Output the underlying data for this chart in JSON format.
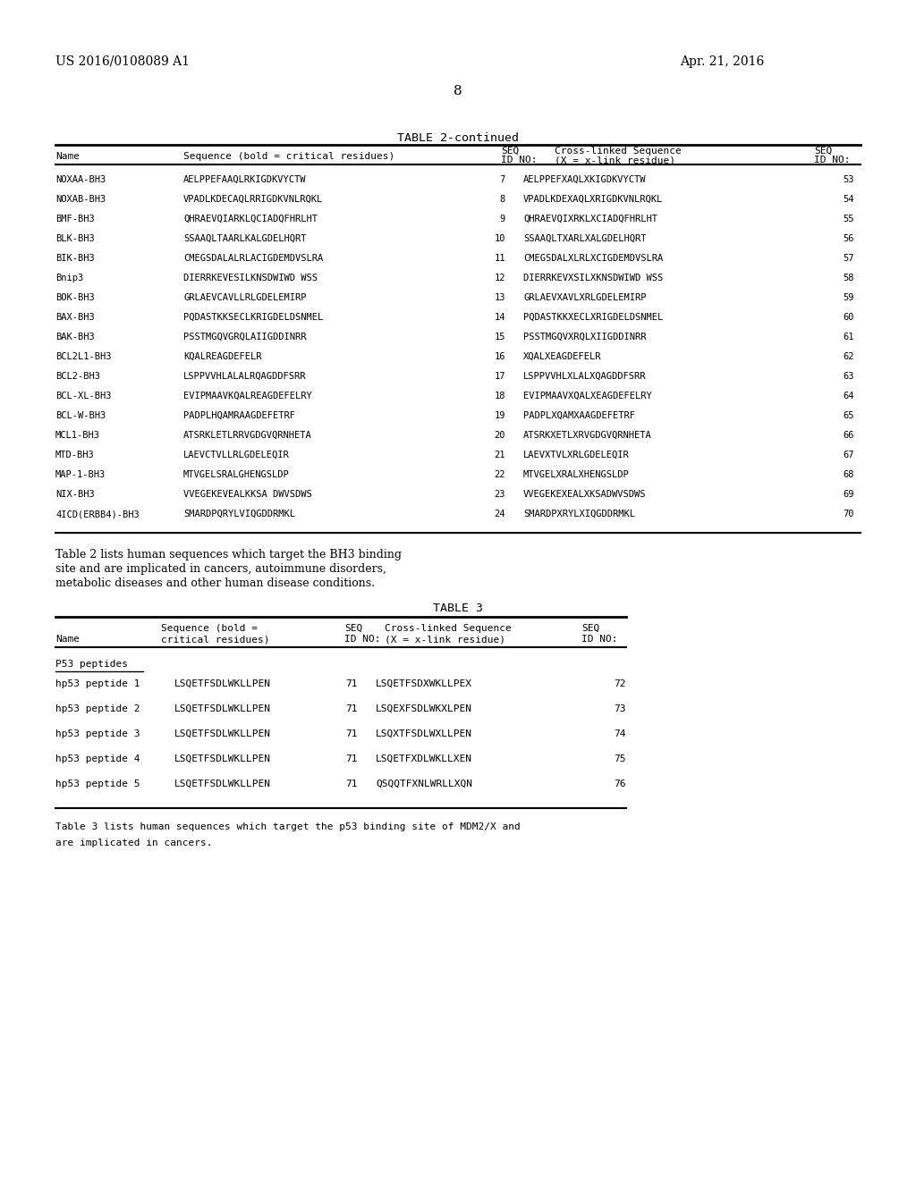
{
  "page_num": "8",
  "header_left": "US 2016/0108089 A1",
  "header_right": "Apr. 21, 2016",
  "table2_title": "TABLE 2-continued",
  "table2_col_headers": [
    [
      "Name",
      "Sequence (bold = critical residues)",
      "SEQ\nID NO:",
      "Cross-linked Sequence\n(X = x-link residue)",
      "SEQ\nID NO:"
    ]
  ],
  "table2_rows": [
    [
      "NOXAA-BH3",
      "AELPPEFAAQLRKIG{DKVYCTW}",
      "7",
      "AELPPEF{XAQLXKIG}DKVYCTW",
      "53"
    ],
    [
      "NOXAB-BH3",
      "VPADLKDECAQLRRIG{DKVNLRQKL}",
      "8",
      "VPADLKDE{XAQLXRIG}DKVNLRQKL",
      "54"
    ],
    [
      "BMF-BH3",
      "QHRAEVQIARKL{QCIAD}QFHRLHT",
      "9",
      "QHRAEVQI{XRKLX}CIADQFHRLHT",
      "55"
    ],
    [
      "BLK-BH3",
      "SSAAQLTAARLKAL{GDELHQRT}",
      "10",
      "SSAAQLT{XARLX}ALGDELHQRT",
      "56"
    ],
    [
      "BIK-BH3",
      "CMEGSDALALRLACIG{DEMDVSLRA}",
      "11",
      "CMEGSDALX{LRLX}CIGDEMDVSLRA",
      "57"
    ],
    [
      "Bnip3",
      "DIERRKEVESILKKNS{DWIWD}WSS",
      "12",
      "DIERRKEVX{SILX}KNSDWIWD WSS",
      "58"
    ],
    [
      "BOK-BH3",
      "GRLAEVCAVLLRLG{DELEMIRP}",
      "13",
      "GRLAEVX{AVLX}RLGDELEMIRP",
      "59"
    ],
    [
      "BAX-BH3",
      "PQDASTKKSECLKRIG{DELDSNMEL}",
      "14",
      "PQDASTKKX{ECLX}RIGDELDSNMEL",
      "60"
    ],
    [
      "BAK-BH3",
      "PSSTMGQVGRQLAIIG{DDINRR}",
      "15",
      "PSSTMGQVX{RQLX}IIGDDINRR",
      "61"
    ],
    [
      "BCL2L1-BH3",
      "KQALREAG{DEFELR}",
      "16",
      "X{QALX}EAGDEFELR",
      "62"
    ],
    [
      "BCL2-BH3",
      "LSPPVVHLALALRQAG{DDFSRR}",
      "17",
      "LSPPVVHLX{LALX}QAGDDFSRR",
      "63"
    ],
    [
      "BCL-XL-BH3",
      "EVIPMAAVKQALREAG{DEFELRY}",
      "18",
      "EVIPMAAVX{QALX}EAGDEFELRY",
      "64"
    ],
    [
      "BCL-W-BH3",
      "PADPLHQAMRAAG{DEFETRF}",
      "19",
      "PADPLX{QAMX}AAGDEFETRF",
      "65"
    ],
    [
      "MCL1-BH3",
      "ATSRKLETLRRVGDGVQRNHETA",
      "20",
      "ATSRKX{ETLX}RVGDGVQRNHETA",
      "66"
    ],
    [
      "MTD-BH3",
      "LAEVCTVLLRLG{DELEQIR}",
      "21",
      "LAEVX{TVLX}RLGDELEQIR",
      "67"
    ],
    [
      "MAP-1-BH3",
      "MTVGELSRALGHENGSLDP",
      "22",
      "MTVGELX{RALX}HENGSLDP",
      "68"
    ],
    [
      "NIX-BH3",
      "VVEGEKEVEALKKSA{DWVSDWS}",
      "23",
      "VVEGEKEX{EALX}KSADWVSDWS",
      "69"
    ],
    [
      "4ICD(ERBB4)-BH3",
      "SMARDPQRYLVIQ{GDDRMKL}",
      "24",
      "SMARDPX{RYLX}IQGDDRMKL",
      "70"
    ]
  ],
  "table2_note": "Table 2 lists human sequences which target the BH3 binding\nsite and are implicated in cancers, autoimmune disorders,\nmetabolic diseases and other human disease conditions.",
  "table3_title": "TABLE 3",
  "table3_col_headers": [
    [
      "",
      "Sequence (bold =",
      "SEQ",
      "Cross-linked Sequence",
      "SEQ"
    ],
    [
      "Name",
      "critical residues)",
      "ID NO:",
      "(X = x-link residue)",
      "ID NO:"
    ]
  ],
  "table3_section": "P53 peptides",
  "table3_rows": [
    [
      "hp53 peptide 1",
      "LSQET{FSDLW}KLLPEN",
      "71",
      "LSQET{FSDX}WKLLPEX",
      "72"
    ],
    [
      "hp53 peptide 2",
      "LSQET{FSDLW}KLLPEN",
      "71",
      "LSQEX{FSDLWKX}LPEN",
      "73"
    ],
    [
      "hp53 peptide 3",
      "LSQET{FSDLW}KLLPEN",
      "71",
      "LSQX{TFSDLWX}LLPEN",
      "74"
    ],
    [
      "hp53 peptide 4",
      "LSQET{FSDLW}KLLPEN",
      "71",
      "LSQET{FXDLWKLL}XEN",
      "75"
    ],
    [
      "hp53 peptide 5",
      "LSQET{FSDLW}KLLPEN",
      "71",
      "QSQQT{FXNLWRLL}XQN",
      "76"
    ]
  ],
  "table3_note": "Table 3 lists human sequences which target the p53 binding site of MDM2/X and\nare implicated in cancers.",
  "bg_color": "#ffffff",
  "text_color": "#000000",
  "mono_font": "DejaVu Sans Mono",
  "serif_font": "DejaVu Serif"
}
